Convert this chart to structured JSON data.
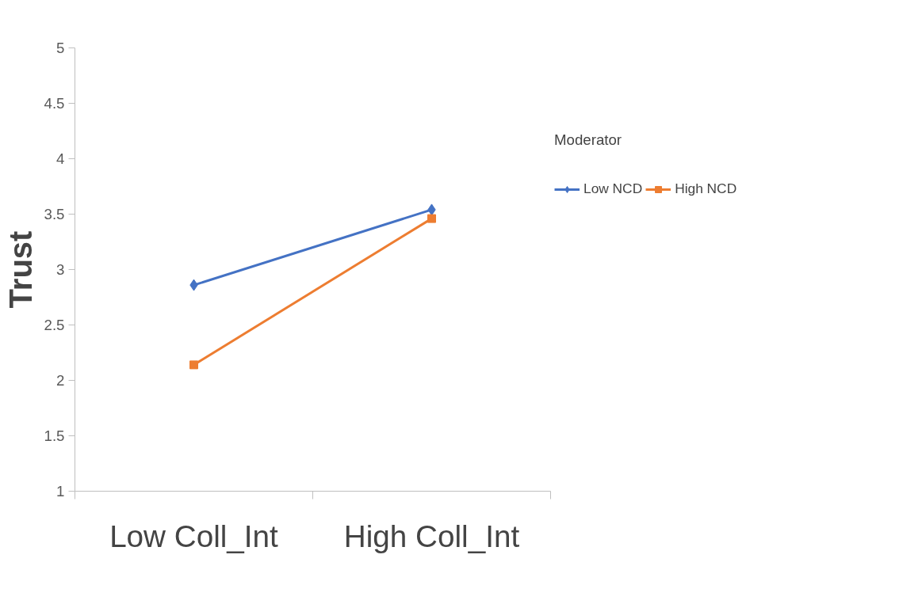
{
  "chart_data": {
    "type": "line",
    "ylabel": "Trust",
    "legend_title": "Moderator",
    "categories": [
      "Low Coll_Int",
      "High Coll_Int"
    ],
    "series": [
      {
        "name": "Low NCD",
        "color": "#4472c4",
        "values": [
          2.86,
          3.54
        ],
        "marker": "diamond"
      },
      {
        "name": "High NCD",
        "color": "#ed7d31",
        "values": [
          2.14,
          3.46
        ],
        "marker": "square"
      }
    ],
    "ylim": [
      1,
      5
    ],
    "yticks": [
      1,
      1.5,
      2,
      2.5,
      3,
      3.5,
      4,
      4.5,
      5
    ],
    "grid": false,
    "legend": "right",
    "line_style": "solid"
  }
}
